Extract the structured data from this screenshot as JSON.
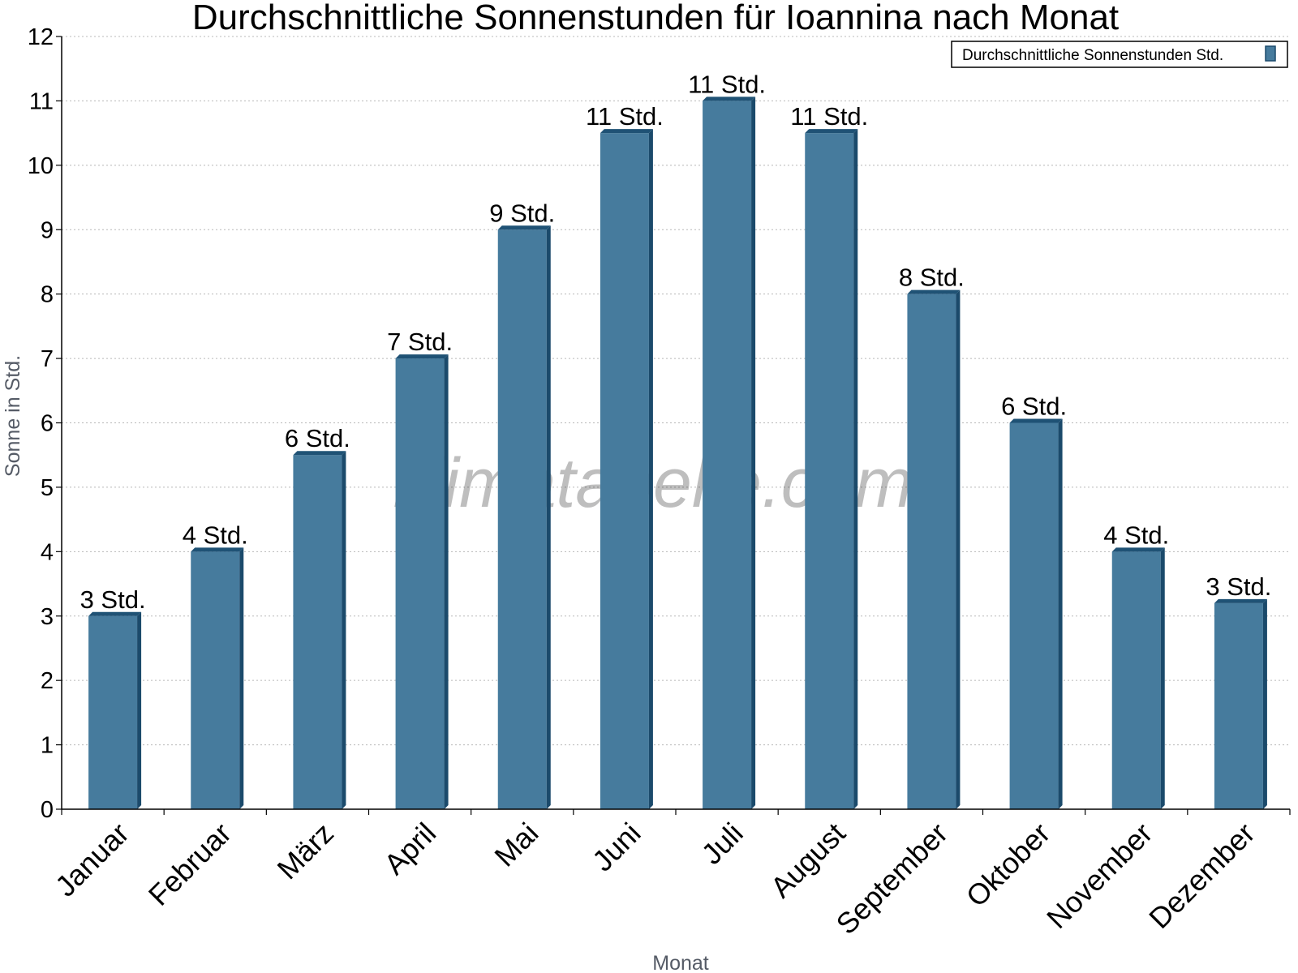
{
  "chart_data": {
    "type": "bar",
    "title": "Durchschnittliche Sonnenstunden für Ioannina nach Monat",
    "xlabel": "Monat",
    "ylabel": "Sonne in Std.",
    "ylim": [
      0,
      12
    ],
    "yticks": [
      "0",
      "1",
      "2",
      "3",
      "4",
      "5",
      "6",
      "7",
      "8",
      "9",
      "10",
      "11",
      "12"
    ],
    "grid": true,
    "legend_position": "top-right",
    "categories": [
      "Januar",
      "Februar",
      "März",
      "April",
      "Mai",
      "Juni",
      "Juli",
      "August",
      "September",
      "Oktober",
      "November",
      "Dezember"
    ],
    "series": [
      {
        "name": "Durchschnittliche Sonnenstunden Std.",
        "values": [
          3.0,
          4.0,
          5.5,
          7.0,
          9.0,
          10.5,
          11.0,
          10.5,
          8.0,
          6.0,
          4.0,
          3.2
        ],
        "labels": [
          "3 Std.",
          "4 Std.",
          "6 Std.",
          "7 Std.",
          "9 Std.",
          "11 Std.",
          "11 Std.",
          "11 Std.",
          "8 Std.",
          "6 Std.",
          "4 Std.",
          "3 Std."
        ]
      }
    ],
    "colors": {
      "bar_front": "#467b9d",
      "bar_side": "#1b4a6b",
      "bar_top": "#1f5275"
    }
  },
  "watermark": "klimatabelle.com"
}
